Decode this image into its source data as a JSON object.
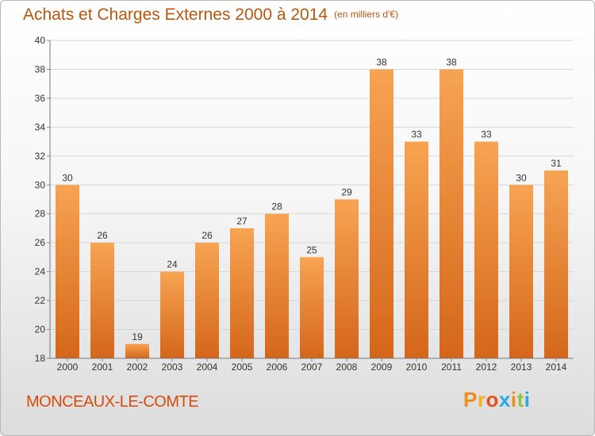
{
  "header": {
    "title": "Achats et Charges Externes 2000 à 2014",
    "unit": "(en milliers d'€)"
  },
  "commune": "MONCEAUX-LE-COMTE",
  "logo": {
    "text": "Proxiti",
    "colors": [
      "#f28c1a",
      "#f2b01a",
      "#e94e1b",
      "#2aa8e0",
      "#f28c1a",
      "#8dc63f",
      "#2aa8e0"
    ]
  },
  "colors": {
    "bar_top": "#f7a452",
    "bar_bottom": "#d4661a",
    "text_accent": "#d94a08"
  },
  "chart_data": {
    "type": "bar",
    "categories": [
      "2000",
      "2001",
      "2002",
      "2003",
      "2004",
      "2005",
      "2006",
      "2007",
      "2008",
      "2009",
      "2010",
      "2011",
      "2012",
      "2013",
      "2014"
    ],
    "values": [
      30,
      26,
      19,
      24,
      26,
      27,
      28,
      25,
      29,
      38,
      33,
      38,
      33,
      30,
      31
    ],
    "data_labels": [
      "30",
      "26",
      "19",
      "24",
      "26",
      "27",
      "28",
      "25",
      "29",
      "38",
      "33",
      "38",
      "33",
      "30",
      "31"
    ],
    "title": "Achats et Charges Externes 2000 à 2014",
    "ylim": [
      18,
      40
    ],
    "yticks": [
      18,
      20,
      22,
      24,
      26,
      28,
      30,
      32,
      34,
      36,
      38,
      40
    ],
    "grid": true
  }
}
